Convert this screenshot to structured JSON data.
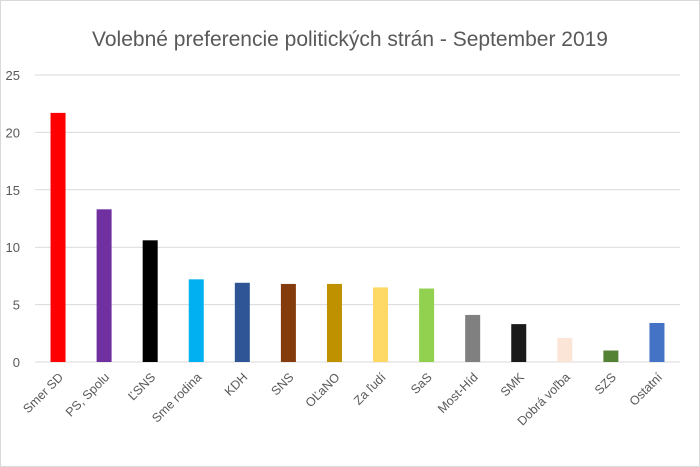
{
  "chart_data": {
    "type": "bar",
    "title": "Volebné preferencie politických strán - September 2019",
    "xlabel": "",
    "ylabel": "",
    "ylim": [
      0,
      25
    ],
    "yticks": [
      0,
      5,
      10,
      15,
      20,
      25
    ],
    "grid": true,
    "categories": [
      "Smer SD",
      "PS, Spolu",
      "ĽSNS",
      "Sme rodina",
      "KDH",
      "SNS",
      "OĽaNO",
      "Za ľudí",
      "SaS",
      "Most-Híd",
      "SMK",
      "Dobrá voľba",
      "SZS",
      "Ostatní"
    ],
    "values": [
      21.7,
      13.3,
      10.6,
      7.2,
      6.9,
      6.8,
      6.8,
      6.5,
      6.4,
      4.1,
      3.3,
      2.1,
      1.0,
      3.4
    ],
    "colors": [
      "#ff0000",
      "#7030a0",
      "#000000",
      "#00b0f0",
      "#2f5597",
      "#843c0c",
      "#bf9000",
      "#ffd966",
      "#92d050",
      "#808080",
      "#1a1a1a",
      "#fbe5d6",
      "#548235",
      "#4472c4"
    ]
  }
}
